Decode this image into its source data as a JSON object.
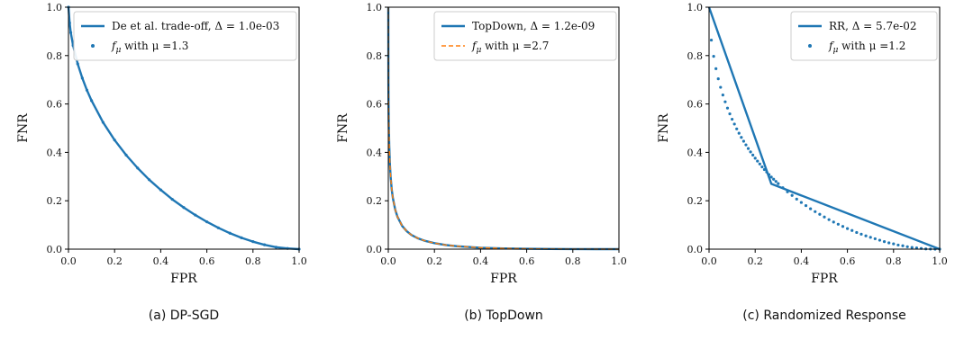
{
  "chart_data": [
    {
      "type": "line",
      "caption": "(a) DP-SGD",
      "xlabel": "FPR",
      "ylabel": "FNR",
      "xlim": [
        0,
        1
      ],
      "ylim": [
        0,
        1
      ],
      "xticks": [
        "0.0",
        "0.2",
        "0.4",
        "0.6",
        "0.8",
        "1.0"
      ],
      "yticks": [
        "0.0",
        "0.2",
        "0.4",
        "0.6",
        "0.8",
        "1.0"
      ],
      "grid": false,
      "legend_position": "top-right",
      "series": [
        {
          "name": "De et al. trade-off, Δ = 1.0e-03",
          "style": "solid",
          "color": "#1f77b4",
          "x": [
            0.0,
            0.005,
            0.01,
            0.02,
            0.04,
            0.06,
            0.08,
            0.1,
            0.15,
            0.2,
            0.25,
            0.3,
            0.35,
            0.4,
            0.45,
            0.5,
            0.55,
            0.6,
            0.65,
            0.7,
            0.75,
            0.8,
            0.85,
            0.9,
            0.95,
            1.0
          ],
          "y": [
            1.0,
            0.935,
            0.895,
            0.842,
            0.766,
            0.707,
            0.657,
            0.614,
            0.524,
            0.451,
            0.389,
            0.335,
            0.287,
            0.245,
            0.206,
            0.172,
            0.141,
            0.113,
            0.088,
            0.066,
            0.047,
            0.031,
            0.018,
            0.008,
            0.003,
            0.0
          ]
        },
        {
          "name": "f_μ with μ =1.3",
          "style": "dots",
          "color": "#1f77b4",
          "x": [
            0.0,
            0.005,
            0.01,
            0.02,
            0.04,
            0.06,
            0.08,
            0.1,
            0.15,
            0.2,
            0.25,
            0.3,
            0.35,
            0.4,
            0.45,
            0.5,
            0.55,
            0.6,
            0.65,
            0.7,
            0.75,
            0.8,
            0.85,
            0.9,
            0.95,
            1.0
          ],
          "y": [
            1.0,
            0.935,
            0.895,
            0.842,
            0.766,
            0.707,
            0.657,
            0.614,
            0.524,
            0.451,
            0.389,
            0.335,
            0.287,
            0.245,
            0.206,
            0.172,
            0.141,
            0.113,
            0.088,
            0.066,
            0.047,
            0.031,
            0.018,
            0.008,
            0.003,
            0.0
          ]
        }
      ]
    },
    {
      "type": "line",
      "caption": "(b) TopDown",
      "xlabel": "FPR",
      "ylabel": "FNR",
      "xlim": [
        0,
        1
      ],
      "ylim": [
        0,
        1
      ],
      "xticks": [
        "0.0",
        "0.2",
        "0.4",
        "0.6",
        "0.8",
        "1.0"
      ],
      "yticks": [
        "0.0",
        "0.2",
        "0.4",
        "0.6",
        "0.8",
        "1.0"
      ],
      "grid": false,
      "legend_position": "top-right",
      "series": [
        {
          "name": "TopDown, Δ = 1.2e-09",
          "style": "solid",
          "color": "#1f77b4",
          "x": [
            0.0,
            0.0005,
            0.001,
            0.002,
            0.004,
            0.007,
            0.01,
            0.015,
            0.02,
            0.03,
            0.04,
            0.06,
            0.08,
            0.1,
            0.13,
            0.16,
            0.2,
            0.25,
            0.3,
            0.4,
            0.5,
            0.6,
            0.7,
            0.8,
            0.9,
            1.0
          ],
          "y": [
            1.0,
            0.69,
            0.61,
            0.52,
            0.43,
            0.35,
            0.3,
            0.245,
            0.21,
            0.163,
            0.133,
            0.096,
            0.074,
            0.059,
            0.044,
            0.034,
            0.025,
            0.017,
            0.012,
            0.006,
            0.003,
            0.0015,
            0.0007,
            0.0002,
            5e-05,
            0.0
          ]
        },
        {
          "name": "f_μ with μ =2.7",
          "style": "dashed",
          "color": "#ff7f0e",
          "x": [
            0.0,
            0.0005,
            0.001,
            0.002,
            0.004,
            0.007,
            0.01,
            0.015,
            0.02,
            0.03,
            0.04,
            0.06,
            0.08,
            0.1,
            0.13,
            0.16,
            0.2,
            0.25,
            0.3,
            0.4,
            0.5,
            0.6,
            0.7,
            0.8,
            0.9,
            1.0
          ],
          "y": [
            1.0,
            0.69,
            0.61,
            0.52,
            0.43,
            0.35,
            0.3,
            0.245,
            0.21,
            0.163,
            0.133,
            0.096,
            0.074,
            0.059,
            0.044,
            0.034,
            0.025,
            0.017,
            0.012,
            0.006,
            0.003,
            0.0015,
            0.0007,
            0.0002,
            5e-05,
            0.0
          ]
        }
      ]
    },
    {
      "type": "line",
      "caption": "(c) Randomized Response",
      "xlabel": "FPR",
      "ylabel": "FNR",
      "xlim": [
        0,
        1
      ],
      "ylim": [
        0,
        1
      ],
      "xticks": [
        "0.0",
        "0.2",
        "0.4",
        "0.6",
        "0.8",
        "1.0"
      ],
      "yticks": [
        "0.0",
        "0.2",
        "0.4",
        "0.6",
        "0.8",
        "1.0"
      ],
      "grid": false,
      "legend_position": "top-right",
      "series": [
        {
          "name": "RR, Δ = 5.7e-02",
          "style": "solid",
          "color": "#1f77b4",
          "x": [
            0.0,
            0.27,
            1.0
          ],
          "y": [
            1.0,
            0.27,
            0.0
          ]
        },
        {
          "name": "f_μ with μ =1.2",
          "style": "dots",
          "color": "#1f77b4",
          "x": [
            0.01,
            0.02,
            0.03,
            0.04,
            0.05,
            0.06,
            0.07,
            0.08,
            0.09,
            0.1,
            0.11,
            0.12,
            0.13,
            0.14,
            0.15,
            0.16,
            0.17,
            0.18,
            0.19,
            0.2,
            0.21,
            0.22,
            0.23,
            0.24,
            0.25,
            0.26,
            0.27,
            0.28,
            0.29,
            0.3,
            0.32,
            0.34,
            0.36,
            0.38,
            0.4,
            0.42,
            0.44,
            0.46,
            0.48,
            0.5,
            0.52,
            0.54,
            0.56,
            0.58,
            0.6,
            0.62,
            0.64,
            0.66,
            0.68,
            0.7,
            0.72,
            0.74,
            0.76,
            0.78,
            0.8,
            0.82,
            0.84,
            0.86,
            0.88,
            0.9,
            0.92,
            0.94,
            0.96,
            0.98,
            1.0
          ],
          "y": [
            0.864,
            0.797,
            0.746,
            0.704,
            0.669,
            0.637,
            0.609,
            0.583,
            0.559,
            0.537,
            0.517,
            0.497,
            0.479,
            0.462,
            0.446,
            0.431,
            0.416,
            0.402,
            0.389,
            0.376,
            0.364,
            0.352,
            0.34,
            0.329,
            0.319,
            0.308,
            0.298,
            0.289,
            0.28,
            0.271,
            0.254,
            0.237,
            0.222,
            0.207,
            0.193,
            0.18,
            0.167,
            0.155,
            0.144,
            0.133,
            0.122,
            0.112,
            0.103,
            0.094,
            0.085,
            0.077,
            0.069,
            0.062,
            0.055,
            0.049,
            0.043,
            0.037,
            0.031,
            0.026,
            0.022,
            0.017,
            0.014,
            0.01,
            0.007,
            0.005,
            0.003,
            0.001,
            0.0005,
            0.0001,
            0.0
          ]
        }
      ]
    }
  ]
}
